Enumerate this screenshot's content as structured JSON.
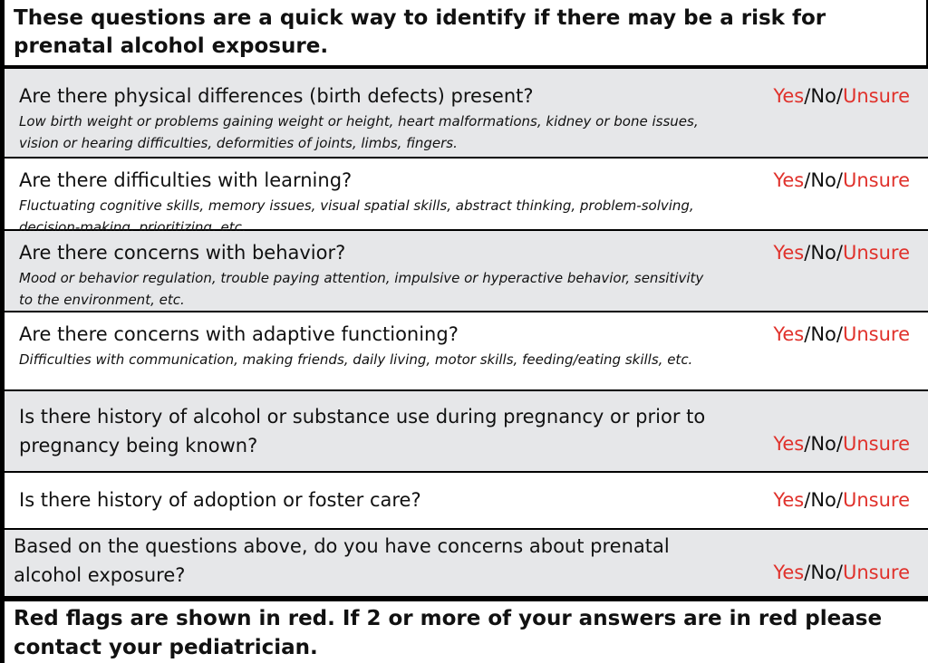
{
  "header": {
    "title": "These questions are a quick way to identify if there may be a risk for prenatal alcohol exposure."
  },
  "answers": {
    "options": [
      "Yes",
      "No",
      "Unsure"
    ],
    "separator": "/",
    "red_flags": [
      true,
      false,
      true
    ],
    "flag_color": "#e0312b"
  },
  "rows": [
    {
      "question": "Are there physical differences (birth defects) present?",
      "description": "Low birth weight or problems gaining weight or height, heart malformations, kidney or bone issues, vision or hearing difficulties, deformities of joints, limbs, fingers."
    },
    {
      "question": "Are there difficulties with learning?",
      "description": "Fluctuating cognitive skills, memory issues, visual spatial skills, abstract thinking, problem-solving, decision-making, prioritizing, etc."
    },
    {
      "question": "Are there concerns with behavior?",
      "description": "Mood or behavior regulation, trouble paying attention, impulsive or hyperactive behavior, sensitivity to the environment, etc."
    },
    {
      "question": "Are there concerns with adaptive functioning?",
      "description": "Difficulties with communication, making friends, daily living, motor skills, feeding/eating skills, etc."
    },
    {
      "question": "Is there history of alcohol or substance use during pregnancy or prior to pregnancy being known?"
    },
    {
      "question": "Is there history of adoption or foster care?"
    },
    {
      "question": "Based on the questions above, do you have concerns about prenatal alcohol exposure?"
    }
  ],
  "footer": {
    "text": "Red flags are shown in red. If 2 or more of your answers are in red please contact your pediatrician."
  }
}
